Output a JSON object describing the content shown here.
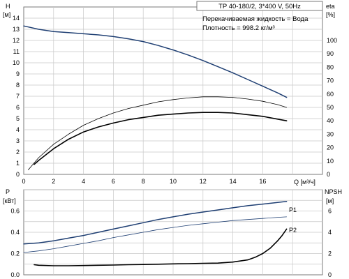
{
  "colors": {
    "blue": "#1f3f73",
    "black": "#000000",
    "grid": "#c8c8c8"
  },
  "header": {
    "model": "TP 40-180/2, 3*400 V, 50Hz",
    "liquid": "Перекачиваемая жидкость = Вода",
    "density": "Плотность = 998.2 кг/м³"
  },
  "chart_data": [
    {
      "type": "line",
      "title": "",
      "xlabel": "Q [м³/ч]",
      "ylabel_left": [
        "H",
        "[м]"
      ],
      "ylabel_right": [
        "eta",
        "[%]"
      ],
      "xlim": [
        0,
        20
      ],
      "ylim_left": [
        0,
        15
      ],
      "ylim_right": [
        0,
        125
      ],
      "x_ticks": [
        "0",
        "2",
        "4",
        "6",
        "8",
        "10",
        "12",
        "14",
        "16"
      ],
      "y_ticks_left": [
        "0",
        "1",
        "2",
        "3",
        "4",
        "5",
        "6",
        "7",
        "8",
        "9",
        "10",
        "11",
        "12",
        "13",
        "14"
      ],
      "y_ticks_right": [
        "0",
        "10",
        "20",
        "30",
        "40",
        "50",
        "60",
        "70",
        "80",
        "90",
        "100"
      ],
      "grid": true,
      "series": [
        {
          "axis": "left",
          "color": "#1f3f73",
          "width": 1.5,
          "x": [
            0,
            1,
            2,
            3,
            4,
            5,
            6,
            7,
            8,
            9,
            10,
            11,
            12,
            13,
            14,
            15,
            16,
            17,
            17.6
          ],
          "y": [
            13.3,
            13.0,
            12.8,
            12.7,
            12.6,
            12.5,
            12.35,
            12.15,
            11.9,
            11.55,
            11.15,
            10.7,
            10.2,
            9.65,
            9.1,
            8.5,
            7.9,
            7.3,
            6.9
          ]
        },
        {
          "axis": "left",
          "color": "#000000",
          "width": 0.8,
          "x": [
            0.3,
            1,
            2,
            3,
            4,
            5,
            6,
            7,
            8,
            9,
            10,
            11,
            12,
            13,
            14,
            15,
            16,
            17,
            17.6
          ],
          "y": [
            0.4,
            1.5,
            2.7,
            3.6,
            4.4,
            5.0,
            5.5,
            5.9,
            6.2,
            6.5,
            6.7,
            6.85,
            6.95,
            6.95,
            6.9,
            6.75,
            6.55,
            6.25,
            6.0
          ]
        },
        {
          "axis": "left",
          "color": "#000000",
          "width": 1.6,
          "x": [
            0.7,
            1,
            2,
            3,
            4,
            5,
            6,
            7,
            8,
            9,
            10,
            11,
            12,
            13,
            14,
            15,
            16,
            17,
            17.6
          ],
          "y": [
            0.9,
            1.25,
            2.3,
            3.15,
            3.8,
            4.25,
            4.6,
            4.9,
            5.1,
            5.3,
            5.4,
            5.5,
            5.55,
            5.55,
            5.5,
            5.35,
            5.2,
            4.95,
            4.8
          ]
        }
      ]
    },
    {
      "type": "line",
      "title": "",
      "xlabel": "",
      "ylabel_left": [
        "P",
        "[кВт]"
      ],
      "ylabel_right": [
        "NPSH",
        "[м]"
      ],
      "xlim": [
        0,
        20
      ],
      "ylim_left": [
        0,
        0.8
      ],
      "ylim_right": [
        0,
        8
      ],
      "y_ticks_left": [
        "0.0",
        "0.2",
        "0.4",
        "0.6"
      ],
      "y_ticks_right": [
        "0",
        "2",
        "4",
        "6"
      ],
      "grid": true,
      "series": [
        {
          "name": "P1",
          "axis": "left",
          "color": "#1f3f73",
          "width": 1.5,
          "x": [
            0,
            1,
            2,
            3,
            4,
            5,
            6,
            7,
            8,
            9,
            10,
            11,
            12,
            13,
            14,
            15,
            16,
            17,
            17.6
          ],
          "y": [
            0.29,
            0.3,
            0.32,
            0.345,
            0.37,
            0.4,
            0.43,
            0.46,
            0.49,
            0.52,
            0.545,
            0.57,
            0.59,
            0.61,
            0.63,
            0.65,
            0.665,
            0.68,
            0.69
          ]
        },
        {
          "name": "P2",
          "axis": "left",
          "color": "#1f3f73",
          "width": 0.8,
          "x": [
            0,
            1,
            2,
            3,
            4,
            5,
            6,
            7,
            8,
            9,
            10,
            11,
            12,
            13,
            14,
            15,
            16,
            17,
            17.6
          ],
          "y": [
            0.21,
            0.225,
            0.245,
            0.27,
            0.295,
            0.32,
            0.35,
            0.375,
            0.4,
            0.425,
            0.445,
            0.465,
            0.48,
            0.495,
            0.51,
            0.52,
            0.53,
            0.54,
            0.545
          ]
        },
        {
          "axis": "right",
          "color": "#000000",
          "width": 1.6,
          "x": [
            0.7,
            1,
            2,
            3,
            4,
            5,
            6,
            7,
            8,
            9,
            10,
            11,
            12,
            13,
            14,
            15,
            15.5,
            16,
            16.5,
            17,
            17.3,
            17.6
          ],
          "y": [
            0.95,
            0.9,
            0.85,
            0.85,
            0.87,
            0.9,
            0.92,
            0.95,
            0.97,
            1.0,
            1.03,
            1.05,
            1.08,
            1.1,
            1.2,
            1.4,
            1.65,
            2.0,
            2.5,
            3.2,
            3.7,
            4.3
          ]
        }
      ]
    }
  ]
}
